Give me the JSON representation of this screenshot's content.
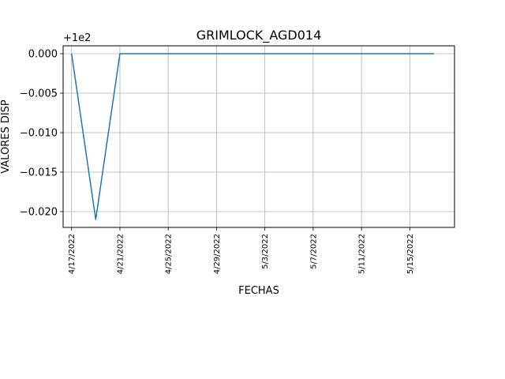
{
  "chart_data": {
    "type": "line",
    "title": "GRIMLOCK_AGD014",
    "xlabel": "FECHAS",
    "ylabel": "VALORES DISP",
    "y_offset_label": "+1e2",
    "x_tick_labels": [
      "4/17/2022",
      "4/21/2022",
      "4/25/2022",
      "4/29/2022",
      "5/3/2022",
      "5/7/2022",
      "5/11/2022",
      "5/15/2022"
    ],
    "y_tick_labels": [
      "0.000",
      "−0.005",
      "−0.010",
      "−0.015",
      "−0.020"
    ],
    "xlim": [
      "2022-04-16",
      "2022-05-18"
    ],
    "ylim": [
      99.978,
      100.001
    ],
    "grid": true,
    "series": [
      {
        "color": "#1f77b4",
        "points": [
          {
            "x": "2022-04-17",
            "y": 100.0
          },
          {
            "x": "2022-04-19",
            "y": 99.979
          },
          {
            "x": "2022-04-21",
            "y": 100.0
          },
          {
            "x": "2022-05-17",
            "y": 100.0
          }
        ]
      }
    ]
  }
}
